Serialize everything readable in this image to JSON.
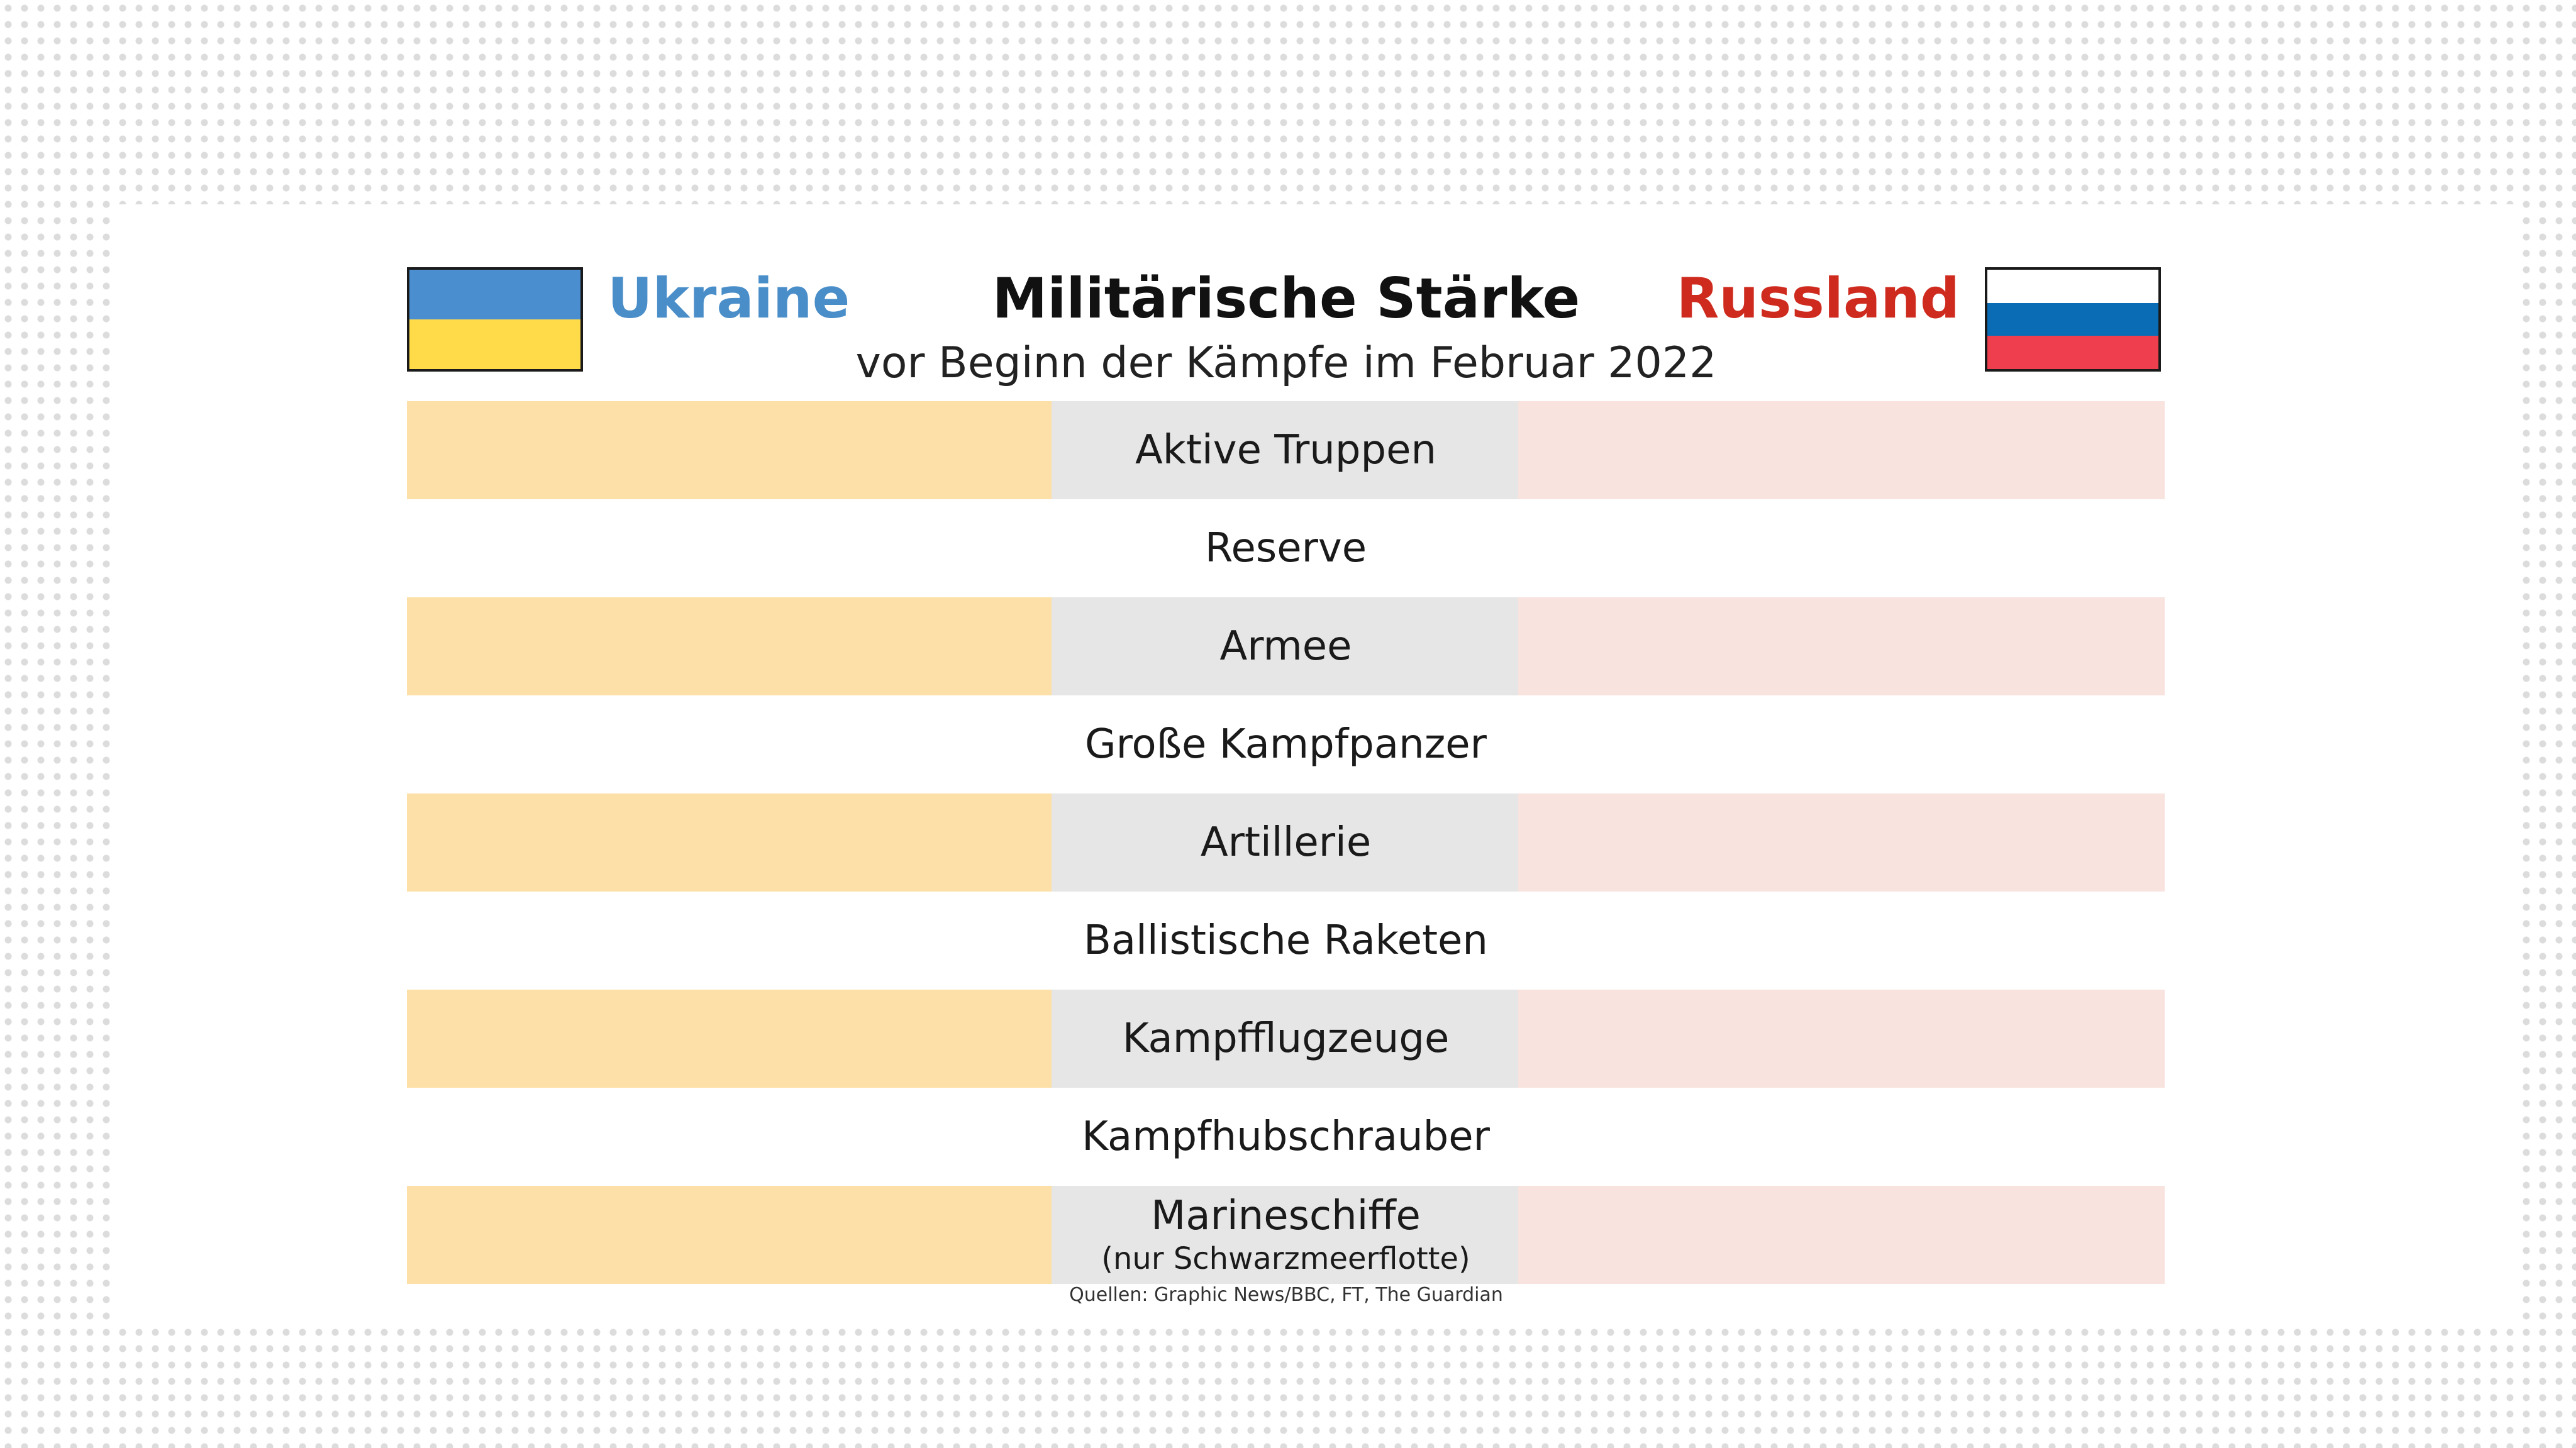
{
  "title": "Militärische Stärke",
  "subtitle": "vor Beginn der Kämpfe im Februar 2022",
  "countries": {
    "left": {
      "name": "Ukraine",
      "color": "#4a8ec9",
      "flag_colors": [
        "#4a8ecf",
        "#ffdb4a"
      ]
    },
    "right": {
      "name": "Russland",
      "color": "#cf2a1e",
      "flag_colors": [
        "#ffffff",
        "#0a6cb5",
        "#ef3e4e"
      ]
    }
  },
  "colors": {
    "left_cell": "#fde0a7",
    "center_cell": "#e6e6e6",
    "right_cell": "#f8e3df"
  },
  "rows": [
    {
      "label": "Aktive Truppen"
    },
    {
      "label": "Reserve"
    },
    {
      "label": "Armee"
    },
    {
      "label": "Große Kampfpanzer"
    },
    {
      "label": "Artillerie"
    },
    {
      "label": "Ballistische Raketen"
    },
    {
      "label": "Kampfflugzeuge"
    },
    {
      "label": "Kampfhubschrauber"
    },
    {
      "label": "Marineschiffe",
      "note": "(nur Schwarzmeerflotte)"
    }
  ],
  "source": "Quellen: Graphic News/BBC, FT, The Guardian"
}
